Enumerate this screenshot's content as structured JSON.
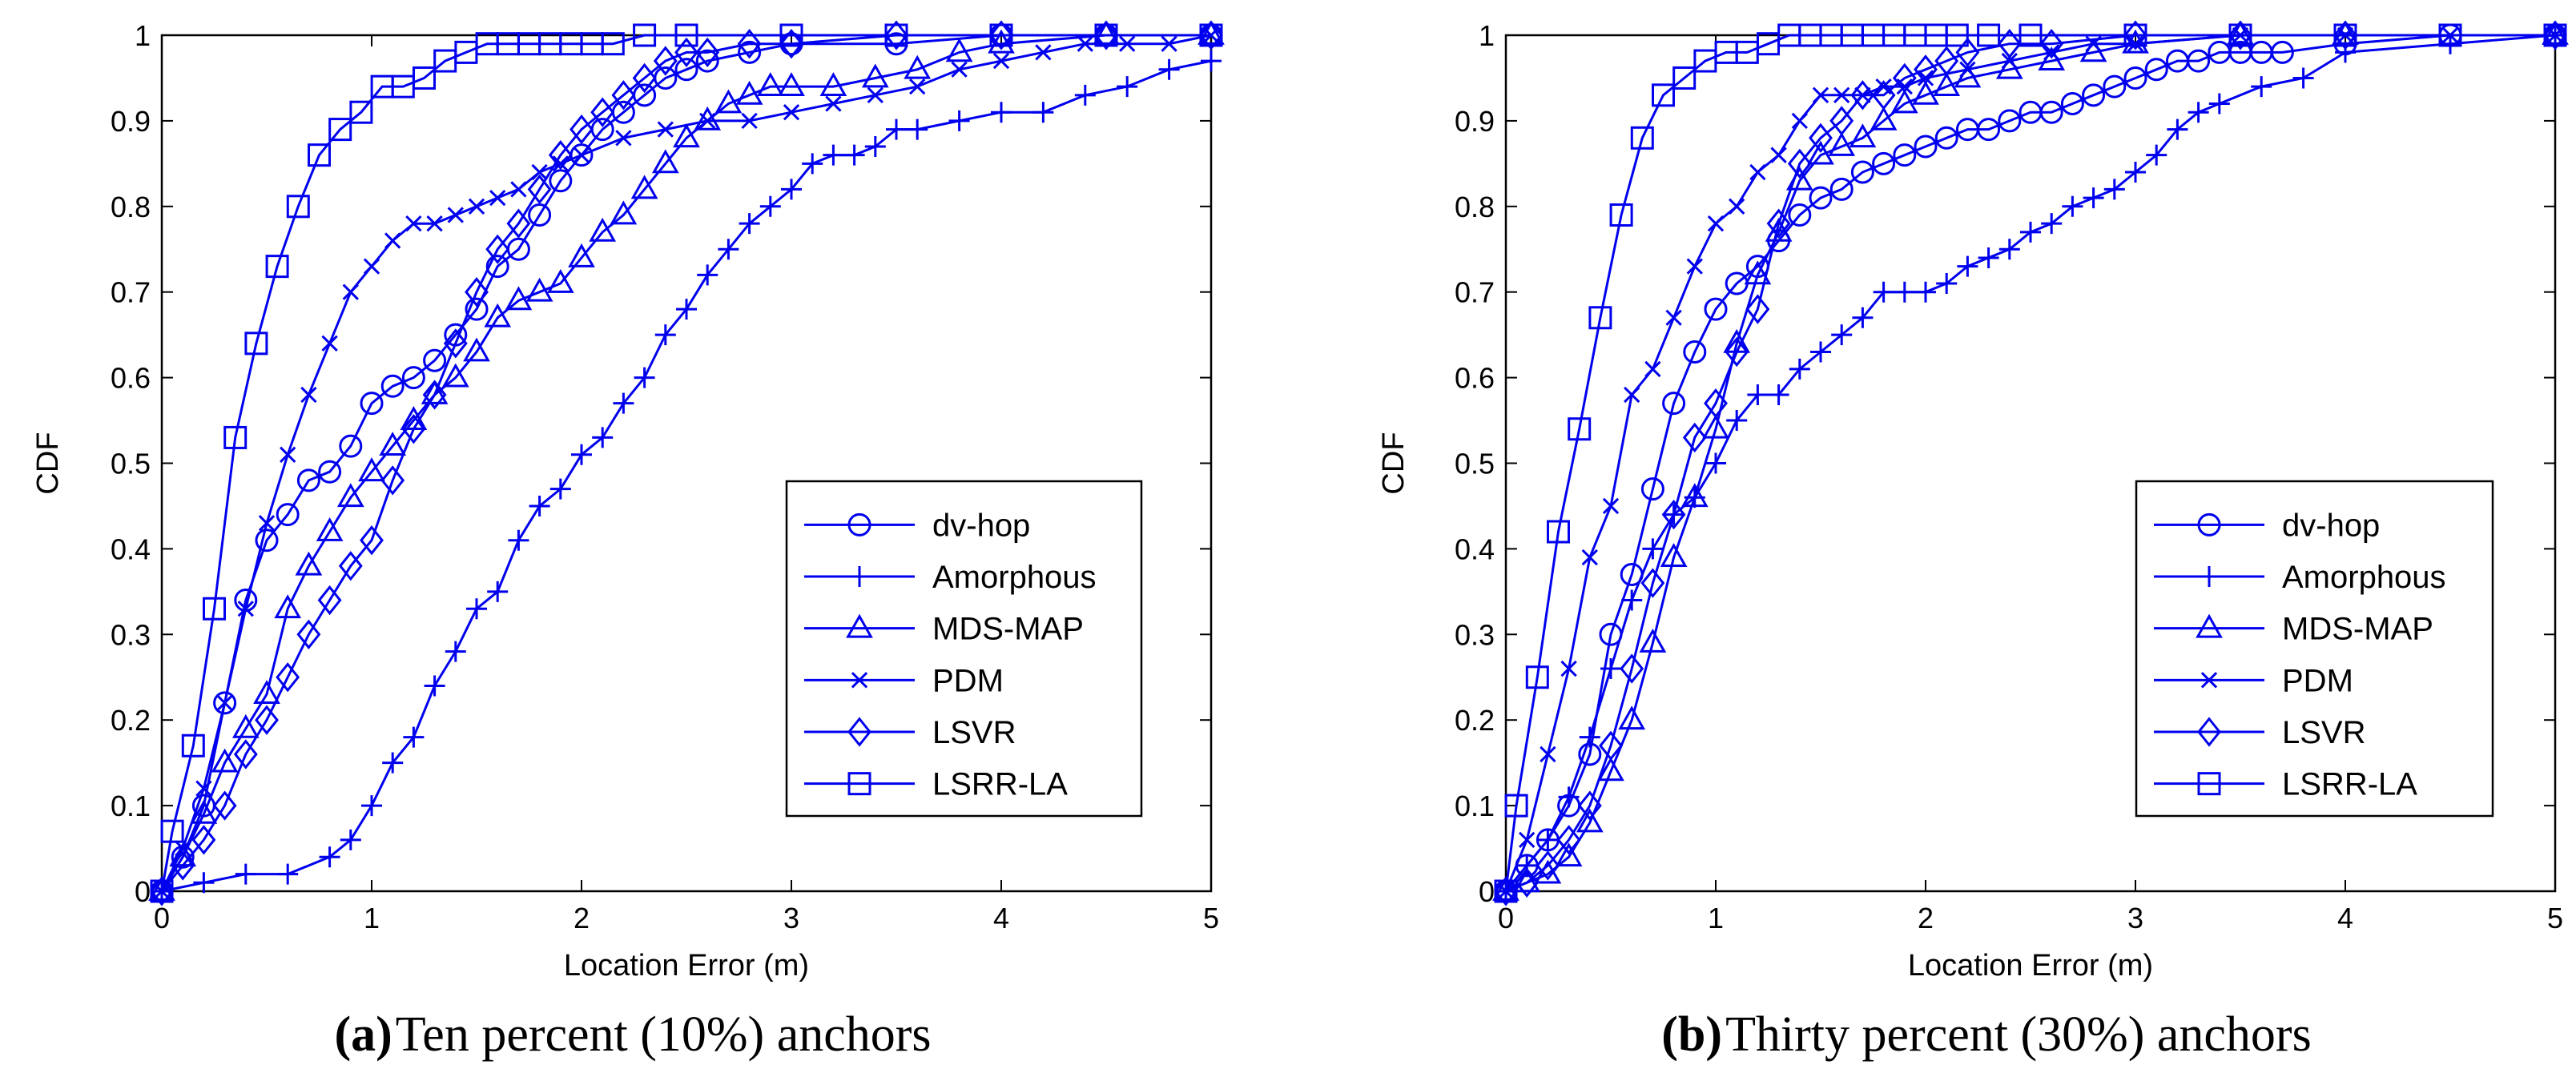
{
  "figure": {
    "line_color": "#0000ee",
    "axis_color": "#000000"
  },
  "chart_data": [
    {
      "type": "line",
      "xlabel": "Location Error (m)",
      "ylabel": "CDF",
      "xlim": [
        0,
        5
      ],
      "ylim": [
        0,
        1
      ],
      "xticks": [
        "0",
        "1",
        "2",
        "3",
        "4",
        "5"
      ],
      "yticks": [
        "0",
        "0.1",
        "0.2",
        "0.3",
        "0.4",
        "0.5",
        "0.6",
        "0.7",
        "0.8",
        "0.9",
        "1"
      ],
      "legend_position": "lower-right",
      "caption_label": "(a)",
      "caption_text": "Ten percent (10%) anchors",
      "series": [
        {
          "name": "dv-hop",
          "marker": "circle",
          "x": [
            0,
            0.1,
            0.2,
            0.3,
            0.4,
            0.5,
            0.6,
            0.7,
            0.8,
            0.9,
            1.0,
            1.1,
            1.2,
            1.3,
            1.4,
            1.5,
            1.6,
            1.7,
            1.8,
            1.9,
            2.0,
            2.1,
            2.2,
            2.3,
            2.4,
            2.5,
            2.6,
            2.8,
            3.0,
            3.5,
            4.0,
            4.5,
            5.0
          ],
          "y": [
            0,
            0.04,
            0.1,
            0.22,
            0.34,
            0.41,
            0.44,
            0.48,
            0.49,
            0.52,
            0.57,
            0.59,
            0.6,
            0.62,
            0.65,
            0.68,
            0.73,
            0.75,
            0.79,
            0.83,
            0.86,
            0.89,
            0.91,
            0.93,
            0.95,
            0.96,
            0.97,
            0.98,
            0.99,
            0.99,
            1.0,
            1.0,
            1.0
          ]
        },
        {
          "name": "Amorphous",
          "marker": "plus",
          "x": [
            0,
            0.2,
            0.4,
            0.6,
            0.8,
            0.9,
            1.0,
            1.1,
            1.2,
            1.3,
            1.4,
            1.5,
            1.6,
            1.7,
            1.8,
            1.9,
            2.0,
            2.1,
            2.2,
            2.3,
            2.4,
            2.5,
            2.6,
            2.7,
            2.8,
            2.9,
            3.0,
            3.1,
            3.2,
            3.3,
            3.4,
            3.5,
            3.6,
            3.8,
            4.0,
            4.2,
            4.4,
            4.6,
            4.8,
            5.0
          ],
          "y": [
            0,
            0.01,
            0.02,
            0.02,
            0.04,
            0.06,
            0.1,
            0.15,
            0.18,
            0.24,
            0.28,
            0.33,
            0.35,
            0.41,
            0.45,
            0.47,
            0.51,
            0.53,
            0.57,
            0.6,
            0.65,
            0.68,
            0.72,
            0.75,
            0.78,
            0.8,
            0.82,
            0.85,
            0.86,
            0.86,
            0.87,
            0.89,
            0.89,
            0.9,
            0.91,
            0.91,
            0.93,
            0.94,
            0.96,
            0.97
          ]
        },
        {
          "name": "MDS-MAP",
          "marker": "triangle",
          "x": [
            0,
            0.1,
            0.2,
            0.3,
            0.4,
            0.5,
            0.6,
            0.7,
            0.8,
            0.9,
            1.0,
            1.1,
            1.2,
            1.3,
            1.4,
            1.5,
            1.6,
            1.7,
            1.8,
            1.9,
            2.0,
            2.1,
            2.2,
            2.3,
            2.4,
            2.5,
            2.6,
            2.7,
            2.8,
            2.9,
            3.0,
            3.2,
            3.4,
            3.6,
            3.8,
            4.0,
            4.5,
            5.0
          ],
          "y": [
            0,
            0.04,
            0.09,
            0.15,
            0.19,
            0.23,
            0.33,
            0.38,
            0.42,
            0.46,
            0.49,
            0.52,
            0.55,
            0.58,
            0.6,
            0.63,
            0.67,
            0.69,
            0.7,
            0.71,
            0.74,
            0.77,
            0.79,
            0.82,
            0.85,
            0.88,
            0.9,
            0.92,
            0.93,
            0.94,
            0.94,
            0.94,
            0.95,
            0.96,
            0.98,
            0.99,
            1.0,
            1.0
          ]
        },
        {
          "name": "PDM",
          "marker": "x",
          "x": [
            0,
            0.1,
            0.2,
            0.3,
            0.4,
            0.5,
            0.6,
            0.7,
            0.8,
            0.9,
            1.0,
            1.1,
            1.2,
            1.3,
            1.4,
            1.5,
            1.6,
            1.7,
            1.8,
            1.9,
            2.0,
            2.2,
            2.4,
            2.6,
            2.8,
            3.0,
            3.2,
            3.4,
            3.6,
            3.8,
            4.0,
            4.2,
            4.4,
            4.6,
            4.8,
            5.0
          ],
          "y": [
            0,
            0.05,
            0.12,
            0.22,
            0.33,
            0.43,
            0.51,
            0.58,
            0.64,
            0.7,
            0.73,
            0.76,
            0.78,
            0.78,
            0.79,
            0.8,
            0.81,
            0.82,
            0.84,
            0.85,
            0.86,
            0.88,
            0.89,
            0.9,
            0.9,
            0.91,
            0.92,
            0.93,
            0.94,
            0.96,
            0.97,
            0.98,
            0.99,
            0.99,
            0.99,
            1.0
          ]
        },
        {
          "name": "LSVR",
          "marker": "diamond",
          "x": [
            0,
            0.1,
            0.2,
            0.3,
            0.4,
            0.5,
            0.6,
            0.7,
            0.8,
            0.9,
            1.0,
            1.1,
            1.2,
            1.3,
            1.4,
            1.5,
            1.6,
            1.7,
            1.8,
            1.9,
            2.0,
            2.1,
            2.2,
            2.3,
            2.4,
            2.5,
            2.6,
            2.8,
            3.0,
            3.5,
            4.0,
            4.5,
            5.0
          ],
          "y": [
            0,
            0.03,
            0.06,
            0.1,
            0.16,
            0.2,
            0.25,
            0.3,
            0.34,
            0.38,
            0.41,
            0.48,
            0.54,
            0.58,
            0.64,
            0.7,
            0.75,
            0.78,
            0.82,
            0.86,
            0.89,
            0.91,
            0.93,
            0.95,
            0.97,
            0.98,
            0.98,
            0.99,
            0.99,
            1.0,
            1.0,
            1.0,
            1.0
          ]
        },
        {
          "name": "LSRR-LA",
          "marker": "square",
          "x": [
            0,
            0.05,
            0.15,
            0.25,
            0.35,
            0.45,
            0.55,
            0.65,
            0.75,
            0.85,
            0.95,
            1.05,
            1.15,
            1.25,
            1.35,
            1.45,
            1.55,
            1.65,
            1.75,
            1.85,
            1.95,
            2.05,
            2.15,
            2.3,
            2.5,
            3.0,
            3.5,
            4.0,
            4.5,
            5.0
          ],
          "y": [
            0,
            0.07,
            0.17,
            0.33,
            0.53,
            0.64,
            0.73,
            0.8,
            0.86,
            0.89,
            0.91,
            0.94,
            0.94,
            0.95,
            0.97,
            0.98,
            0.99,
            0.99,
            0.99,
            0.99,
            0.99,
            0.99,
            0.99,
            1.0,
            1.0,
            1.0,
            1.0,
            1.0,
            1.0,
            1.0
          ]
        }
      ]
    },
    {
      "type": "line",
      "xlabel": "Location Error (m)",
      "ylabel": "CDF",
      "xlim": [
        0,
        5
      ],
      "ylim": [
        0,
        1
      ],
      "xticks": [
        "0",
        "1",
        "2",
        "3",
        "4",
        "5"
      ],
      "yticks": [
        "0",
        "0.1",
        "0.2",
        "0.3",
        "0.4",
        "0.5",
        "0.6",
        "0.7",
        "0.8",
        "0.9",
        "1"
      ],
      "legend_position": "lower-right",
      "caption_label": "(b)",
      "caption_text": "Thirty percent (30%) anchors",
      "series": [
        {
          "name": "dv-hop",
          "marker": "circle",
          "x": [
            0,
            0.1,
            0.2,
            0.3,
            0.4,
            0.5,
            0.6,
            0.7,
            0.8,
            0.9,
            1.0,
            1.1,
            1.2,
            1.3,
            1.4,
            1.5,
            1.6,
            1.7,
            1.8,
            1.9,
            2.0,
            2.1,
            2.2,
            2.3,
            2.4,
            2.5,
            2.6,
            2.7,
            2.8,
            2.9,
            3.0,
            3.1,
            3.2,
            3.3,
            3.4,
            3.5,
            3.6,
            3.7,
            4.0,
            4.5,
            5.0
          ],
          "y": [
            0,
            0.03,
            0.06,
            0.1,
            0.16,
            0.3,
            0.37,
            0.47,
            0.57,
            0.63,
            0.68,
            0.71,
            0.73,
            0.76,
            0.79,
            0.81,
            0.82,
            0.84,
            0.85,
            0.86,
            0.87,
            0.88,
            0.89,
            0.89,
            0.9,
            0.91,
            0.91,
            0.92,
            0.93,
            0.94,
            0.95,
            0.96,
            0.97,
            0.97,
            0.98,
            0.98,
            0.98,
            0.98,
            0.99,
            1.0,
            1.0
          ]
        },
        {
          "name": "Amorphous",
          "marker": "plus",
          "x": [
            0,
            0.1,
            0.2,
            0.3,
            0.4,
            0.5,
            0.6,
            0.7,
            0.8,
            0.9,
            1.0,
            1.1,
            1.2,
            1.3,
            1.4,
            1.5,
            1.6,
            1.7,
            1.8,
            1.9,
            2.0,
            2.1,
            2.2,
            2.3,
            2.4,
            2.5,
            2.6,
            2.7,
            2.8,
            2.9,
            3.0,
            3.1,
            3.2,
            3.3,
            3.4,
            3.6,
            3.8,
            4.0,
            4.5,
            5.0
          ],
          "y": [
            0,
            0.03,
            0.06,
            0.11,
            0.18,
            0.26,
            0.34,
            0.4,
            0.44,
            0.46,
            0.5,
            0.55,
            0.58,
            0.58,
            0.61,
            0.63,
            0.65,
            0.67,
            0.7,
            0.7,
            0.7,
            0.71,
            0.73,
            0.74,
            0.75,
            0.77,
            0.78,
            0.8,
            0.81,
            0.82,
            0.84,
            0.86,
            0.89,
            0.91,
            0.92,
            0.94,
            0.95,
            0.98,
            0.99,
            1.0
          ]
        },
        {
          "name": "MDS-MAP",
          "marker": "triangle",
          "x": [
            0,
            0.1,
            0.2,
            0.3,
            0.4,
            0.5,
            0.6,
            0.7,
            0.8,
            0.9,
            1.0,
            1.1,
            1.2,
            1.3,
            1.4,
            1.5,
            1.6,
            1.7,
            1.8,
            1.9,
            2.0,
            2.1,
            2.2,
            2.4,
            2.6,
            2.8,
            3.0,
            3.5,
            4.0,
            5.0
          ],
          "y": [
            0,
            0.01,
            0.02,
            0.04,
            0.08,
            0.14,
            0.2,
            0.29,
            0.39,
            0.46,
            0.54,
            0.64,
            0.72,
            0.77,
            0.83,
            0.86,
            0.87,
            0.88,
            0.9,
            0.92,
            0.93,
            0.94,
            0.95,
            0.96,
            0.97,
            0.98,
            0.99,
            1.0,
            1.0,
            1.0
          ]
        },
        {
          "name": "PDM",
          "marker": "x",
          "x": [
            0,
            0.1,
            0.2,
            0.3,
            0.4,
            0.5,
            0.6,
            0.7,
            0.8,
            0.9,
            1.0,
            1.1,
            1.2,
            1.3,
            1.4,
            1.5,
            1.6,
            1.7,
            1.8,
            1.9,
            2.0,
            2.2,
            2.4,
            2.6,
            2.8,
            3.0,
            3.5,
            4.0,
            4.5,
            5.0
          ],
          "y": [
            0,
            0.06,
            0.16,
            0.26,
            0.39,
            0.45,
            0.58,
            0.61,
            0.67,
            0.73,
            0.78,
            0.8,
            0.84,
            0.86,
            0.9,
            0.93,
            0.93,
            0.93,
            0.94,
            0.94,
            0.95,
            0.96,
            0.97,
            0.98,
            0.99,
            0.99,
            1.0,
            1.0,
            1.0,
            1.0
          ]
        },
        {
          "name": "LSVR",
          "marker": "diamond",
          "x": [
            0,
            0.1,
            0.2,
            0.3,
            0.4,
            0.5,
            0.6,
            0.7,
            0.8,
            0.9,
            1.0,
            1.1,
            1.2,
            1.3,
            1.4,
            1.5,
            1.6,
            1.7,
            1.8,
            1.9,
            2.0,
            2.1,
            2.2,
            2.4,
            2.6,
            3.0,
            3.5,
            4.0,
            5.0
          ],
          "y": [
            0,
            0.01,
            0.03,
            0.06,
            0.1,
            0.17,
            0.26,
            0.36,
            0.44,
            0.53,
            0.57,
            0.63,
            0.68,
            0.78,
            0.85,
            0.88,
            0.9,
            0.93,
            0.93,
            0.95,
            0.96,
            0.97,
            0.98,
            0.99,
            0.99,
            1.0,
            1.0,
            1.0,
            1.0
          ]
        },
        {
          "name": "LSRR-LA",
          "marker": "square",
          "x": [
            0,
            0.05,
            0.15,
            0.25,
            0.35,
            0.45,
            0.55,
            0.65,
            0.75,
            0.85,
            0.95,
            1.05,
            1.15,
            1.25,
            1.35,
            1.45,
            1.55,
            1.65,
            1.75,
            1.85,
            1.95,
            2.05,
            2.15,
            2.3,
            2.5,
            3.0,
            3.5,
            4.0,
            4.5,
            5.0
          ],
          "y": [
            0,
            0.1,
            0.25,
            0.42,
            0.54,
            0.67,
            0.79,
            0.88,
            0.93,
            0.95,
            0.97,
            0.98,
            0.98,
            0.99,
            1.0,
            1.0,
            1.0,
            1.0,
            1.0,
            1.0,
            1.0,
            1.0,
            1.0,
            1.0,
            1.0,
            1.0,
            1.0,
            1.0,
            1.0,
            1.0
          ]
        }
      ]
    }
  ]
}
